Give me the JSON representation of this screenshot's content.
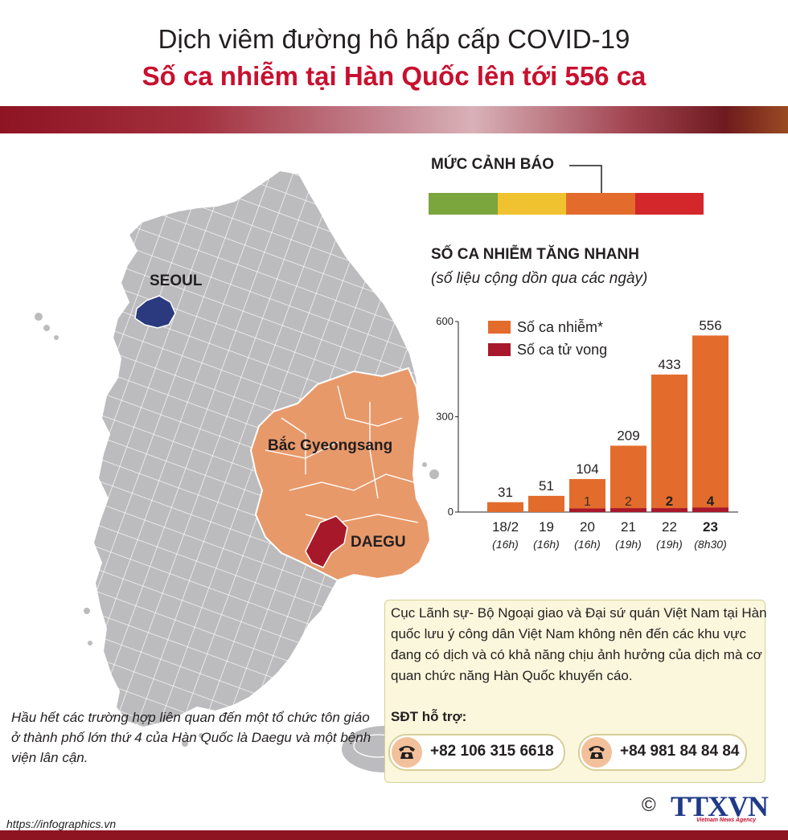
{
  "title": {
    "line1": "Dịch viêm đường hô hấp cấp COVID-19",
    "line2": "Số ca nhiễm tại  Hàn Quốc lên tới 556 ca"
  },
  "map": {
    "seoul": "SEOUL",
    "gyeongsang": "Bắc Gyeongsang",
    "daegu": "DAEGU",
    "colors": {
      "land": "#bcbcbe",
      "border": "#ffffff",
      "seoul": "#2b3a7e",
      "gyeongsang": "#e8996a",
      "daegu": "#a8182b"
    }
  },
  "warning": {
    "title": "MỨC CẢNH BÁO",
    "levels": [
      "#7ba53d",
      "#f0c22f",
      "#e36c2c",
      "#d4272c"
    ]
  },
  "chart_header": {
    "title": "SỐ CA NHIỄM TĂNG NHANH",
    "subtitle": "(số liệu cộng dồn qua các ngày)"
  },
  "chart_data": {
    "type": "bar",
    "categories": [
      "18/2",
      "19",
      "20",
      "21",
      "22",
      "23"
    ],
    "times": [
      "(16h)",
      "(16h)",
      "(16h)",
      "(19h)",
      "(19h)",
      "(8h30)"
    ],
    "series": [
      {
        "name": "Số ca nhiễm*",
        "color": "#e36c2c",
        "values": [
          31,
          51,
          104,
          209,
          433,
          556
        ]
      },
      {
        "name": "Số ca tử vong",
        "color": "#a8182b",
        "values": [
          0,
          0,
          1,
          2,
          2,
          4
        ]
      }
    ],
    "death_labels": [
      "",
      "",
      "1",
      "2",
      "2",
      "4"
    ],
    "yticks": [
      "0",
      "300",
      "600"
    ],
    "ylim": [
      0,
      600
    ]
  },
  "note_left": "Hầu hết các trường hợp liên quan đến một tổ chức tôn giáo ở thành phố lớn thứ 4 của Hàn Quốc là Daegu và một bệnh viện lân cận.",
  "info": {
    "text": "Cục Lãnh sự- Bộ Ngoại giao và Đại sứ quán Việt Nam tại Hàn quốc lưu ý công dân Việt Nam không nên đến các khu vực đang có dịch và có khả năng chịu ảnh hưởng của dịch mà cơ quan chức năng Hàn Quốc khuyến cáo.",
    "phone_label": "SĐT hỗ trợ:",
    "phone1": "+82 106 315 6618",
    "phone2": "+84 981 84 84 84"
  },
  "footer": {
    "url": "https://infographics.vn",
    "copyright": "©",
    "logo": "TTXVN",
    "logo_sub": "Vietnam News Agency"
  }
}
